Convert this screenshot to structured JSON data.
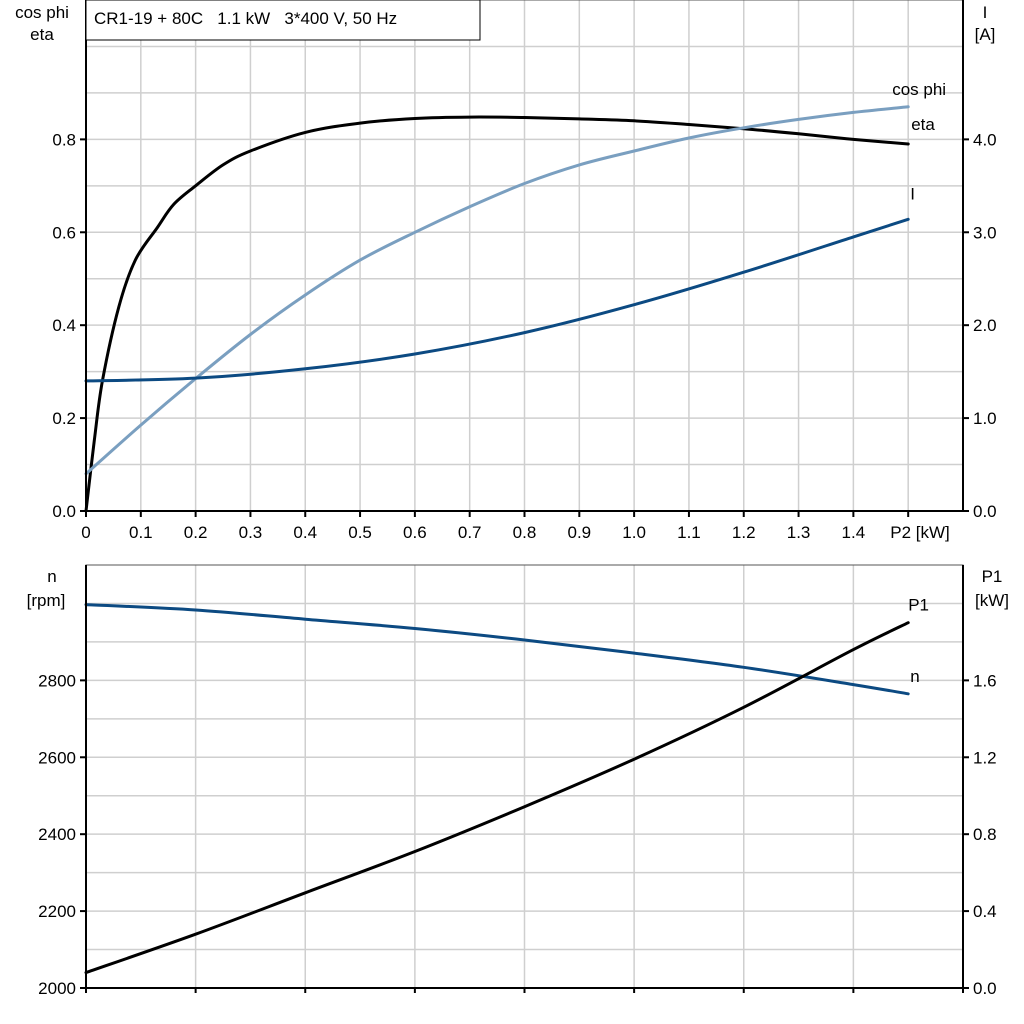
{
  "chart_data": [
    {
      "type": "line",
      "title": "CR1-19 + 80C   1.1 kW   3*400 V, 50 Hz",
      "xlabel": "P2 [kW]",
      "ylabel_left": [
        "cos phi",
        "eta"
      ],
      "ylabel_right": [
        "I",
        "[A]"
      ],
      "xlim": [
        0,
        1.6
      ],
      "ylim_left": [
        0,
        1.1
      ],
      "ylim_right": [
        0,
        5.5
      ],
      "x_ticks": [
        "0",
        "0.1",
        "0.2",
        "0.3",
        "0.4",
        "0.5",
        "0.6",
        "0.7",
        "0.8",
        "0.9",
        "1.0",
        "1.1",
        "1.2",
        "1.3",
        "1.4"
      ],
      "y_ticks_left": [
        "0.0",
        "0.2",
        "0.4",
        "0.6",
        "0.8"
      ],
      "y_ticks_right": [
        "0.0",
        "1.0",
        "2.0",
        "3.0",
        "4.0"
      ],
      "grid": true,
      "series": [
        {
          "name": "eta",
          "axis": "left",
          "color": "#000000",
          "x": [
            0,
            0.015,
            0.03,
            0.06,
            0.09,
            0.13,
            0.16,
            0.2,
            0.25,
            0.3,
            0.4,
            0.5,
            0.6,
            0.7,
            0.8,
            0.9,
            1.0,
            1.1,
            1.2,
            1.3,
            1.4,
            1.5
          ],
          "y": [
            0,
            0.15,
            0.28,
            0.44,
            0.54,
            0.61,
            0.66,
            0.7,
            0.745,
            0.775,
            0.815,
            0.835,
            0.845,
            0.848,
            0.847,
            0.844,
            0.84,
            0.832,
            0.823,
            0.812,
            0.8,
            0.79
          ]
        },
        {
          "name": "cos phi",
          "axis": "left",
          "color": "#7a9fc0",
          "x": [
            0,
            0.1,
            0.2,
            0.3,
            0.4,
            0.5,
            0.6,
            0.7,
            0.8,
            0.9,
            1.0,
            1.1,
            1.2,
            1.3,
            1.4,
            1.5
          ],
          "y": [
            0.08,
            0.185,
            0.285,
            0.38,
            0.465,
            0.54,
            0.6,
            0.655,
            0.705,
            0.745,
            0.775,
            0.803,
            0.825,
            0.843,
            0.858,
            0.87
          ]
        },
        {
          "name": "I",
          "axis": "right",
          "color": "#0c4a82",
          "x": [
            0,
            0.2,
            0.4,
            0.6,
            0.8,
            1.0,
            1.2,
            1.4,
            1.5
          ],
          "y": [
            1.4,
            1.43,
            1.53,
            1.69,
            1.92,
            2.22,
            2.57,
            2.95,
            3.14
          ]
        }
      ]
    },
    {
      "type": "line",
      "ylabel_left": [
        "n",
        "[rpm]"
      ],
      "ylabel_right": [
        "P1",
        "[kW]"
      ],
      "xlim": [
        0,
        1.6
      ],
      "ylim_left": [
        2000,
        3100
      ],
      "ylim_right": [
        0,
        2.2
      ],
      "y_ticks_left": [
        "2000",
        "2200",
        "2400",
        "2600",
        "2800"
      ],
      "y_ticks_right": [
        "0.0",
        "0.4",
        "0.8",
        "1.2",
        "1.6"
      ],
      "grid": true,
      "series": [
        {
          "name": "n",
          "axis": "left",
          "color": "#0c4a82",
          "x": [
            0,
            0.2,
            0.4,
            0.6,
            0.8,
            1.0,
            1.2,
            1.4,
            1.5
          ],
          "y": [
            2997,
            2983,
            2959,
            2935,
            2905,
            2871,
            2834,
            2789,
            2765
          ]
        },
        {
          "name": "P1",
          "axis": "right",
          "color": "#000000",
          "x": [
            0,
            0.2,
            0.4,
            0.6,
            0.8,
            1.0,
            1.2,
            1.4,
            1.5
          ],
          "y": [
            0.08,
            0.28,
            0.495,
            0.71,
            0.943,
            1.19,
            1.46,
            1.76,
            1.9
          ]
        }
      ]
    }
  ]
}
